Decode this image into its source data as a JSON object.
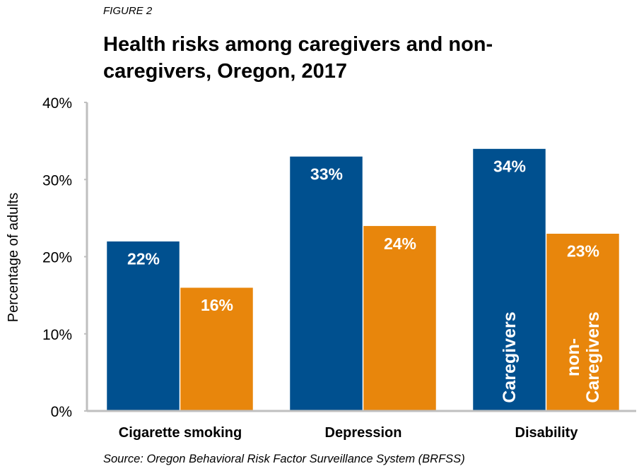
{
  "figure_label": "FIGURE 2",
  "source": "Source: Oregon Behavioral Risk Factor Surveillance System (BRFSS)",
  "colors": {
    "caregivers": "#00508F",
    "non_caregivers": "#E8860C",
    "axis": "#BFBFBF"
  },
  "chart_data": {
    "type": "bar",
    "title": "Health risks among caregivers and non-caregivers, Oregon, 2017",
    "title_lines": [
      "Health risks among caregivers and non-",
      "caregivers, Oregon, 2017"
    ],
    "ylabel": "Percentage of adults",
    "xlabel": "",
    "ylim": [
      0,
      40
    ],
    "yticks": [
      0,
      10,
      20,
      30,
      40
    ],
    "ytick_labels": [
      "0%",
      "10%",
      "20%",
      "30%",
      "40%"
    ],
    "categories": [
      "Cigarette smoking",
      "Depression",
      "Disability"
    ],
    "series": [
      {
        "name": "Caregivers",
        "values": [
          22,
          33,
          34
        ],
        "labels": [
          "22%",
          "33%",
          "34%"
        ]
      },
      {
        "name": "non-Caregivers",
        "values": [
          16,
          24,
          23
        ],
        "labels": [
          "16%",
          "24%",
          "23%"
        ],
        "name_lines": [
          "non-",
          "Caregivers"
        ]
      }
    ],
    "grid": false,
    "legend": "inside last category bars"
  }
}
